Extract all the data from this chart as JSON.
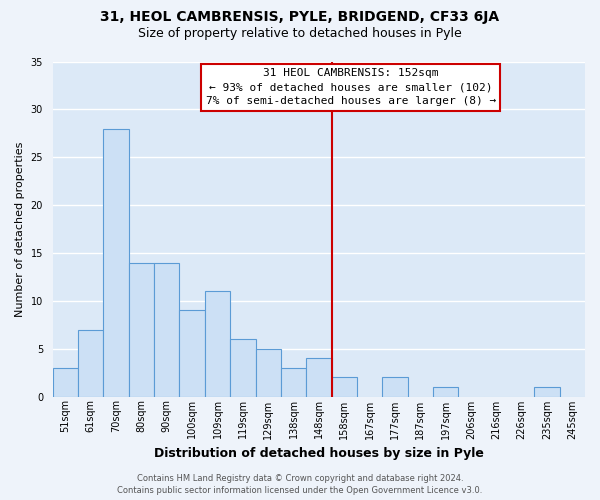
{
  "title1": "31, HEOL CAMBRENSIS, PYLE, BRIDGEND, CF33 6JA",
  "title2": "Size of property relative to detached houses in Pyle",
  "xlabel": "Distribution of detached houses by size in Pyle",
  "ylabel": "Number of detached properties",
  "bar_labels": [
    "51sqm",
    "61sqm",
    "70sqm",
    "80sqm",
    "90sqm",
    "100sqm",
    "109sqm",
    "119sqm",
    "129sqm",
    "138sqm",
    "148sqm",
    "158sqm",
    "167sqm",
    "177sqm",
    "187sqm",
    "197sqm",
    "206sqm",
    "216sqm",
    "226sqm",
    "235sqm",
    "245sqm"
  ],
  "bar_heights": [
    3,
    7,
    28,
    14,
    14,
    9,
    11,
    6,
    5,
    3,
    4,
    2,
    0,
    2,
    0,
    1,
    0,
    0,
    0,
    1,
    0
  ],
  "bar_color": "#cce0f5",
  "bar_edge_color": "#5b9bd5",
  "ylim": [
    0,
    35
  ],
  "yticks": [
    0,
    5,
    10,
    15,
    20,
    25,
    30,
    35
  ],
  "vline_color": "#cc0000",
  "annotation_title": "31 HEOL CAMBRENSIS: 152sqm",
  "annotation_line1": "← 93% of detached houses are smaller (102)",
  "annotation_line2": "7% of semi-detached houses are larger (8) →",
  "annotation_box_facecolor": "#ffffff",
  "annotation_box_edgecolor": "#cc0000",
  "footer1": "Contains HM Land Registry data © Crown copyright and database right 2024.",
  "footer2": "Contains public sector information licensed under the Open Government Licence v3.0.",
  "background_color": "#eef3fa",
  "plot_bg_color": "#dce9f7",
  "grid_color": "#ffffff",
  "title1_fontsize": 10,
  "title2_fontsize": 9,
  "ylabel_fontsize": 8,
  "xlabel_fontsize": 9,
  "tick_fontsize": 7,
  "footer_fontsize": 6,
  "annotation_fontsize": 8
}
